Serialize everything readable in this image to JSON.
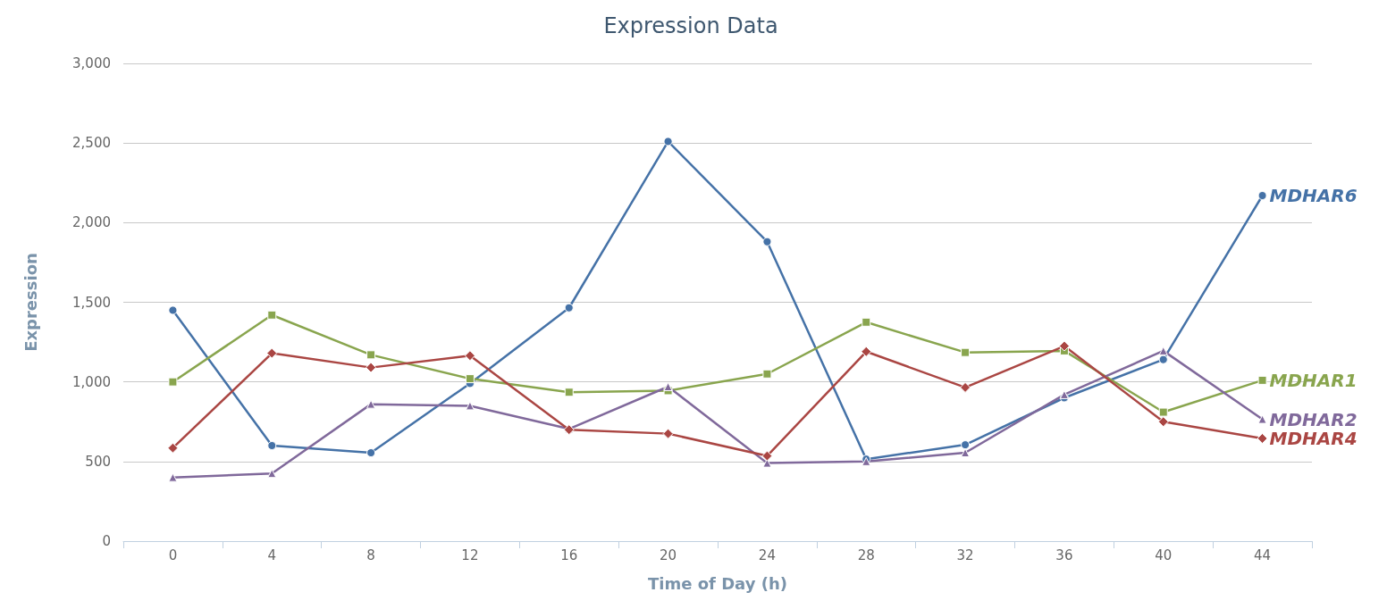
{
  "chart_data": {
    "type": "line",
    "title": "Expression Data",
    "xlabel": "Time of Day (h)",
    "ylabel": "Expression",
    "categories": [
      "0",
      "4",
      "8",
      "12",
      "16",
      "20",
      "24",
      "28",
      "32",
      "36",
      "40",
      "44"
    ],
    "series": [
      {
        "name": "MDHAR6",
        "color": "#4572a7",
        "marker": "circle",
        "values": [
          1450,
          600,
          555,
          990,
          1465,
          2510,
          1880,
          515,
          605,
          900,
          1140,
          2170
        ]
      },
      {
        "name": "MDHAR1",
        "color": "#89a54e",
        "marker": "square",
        "values": [
          1000,
          1420,
          1170,
          1020,
          935,
          945,
          1050,
          1375,
          1185,
          1195,
          810,
          1010
        ]
      },
      {
        "name": "MDHAR2",
        "color": "#80699b",
        "marker": "triangle",
        "values": [
          400,
          425,
          860,
          850,
          705,
          970,
          490,
          500,
          555,
          920,
          1195,
          765
        ]
      },
      {
        "name": "MDHAR4",
        "color": "#aa4643",
        "marker": "diamond",
        "values": [
          585,
          1180,
          1090,
          1165,
          700,
          675,
          535,
          1190,
          965,
          1225,
          750,
          645
        ]
      }
    ],
    "ylim": [
      0,
      3000
    ],
    "yticks": [
      0,
      500,
      {
        "value": 1000,
        "label": "1,000"
      },
      {
        "value": 1500,
        "label": "1,500"
      },
      {
        "value": 2000,
        "label": "2,000"
      },
      {
        "value": 2500,
        "label": "2,500"
      },
      {
        "value": 3000,
        "label": "3,000"
      }
    ],
    "grid": "y",
    "legend": false,
    "line_style": "solid"
  }
}
